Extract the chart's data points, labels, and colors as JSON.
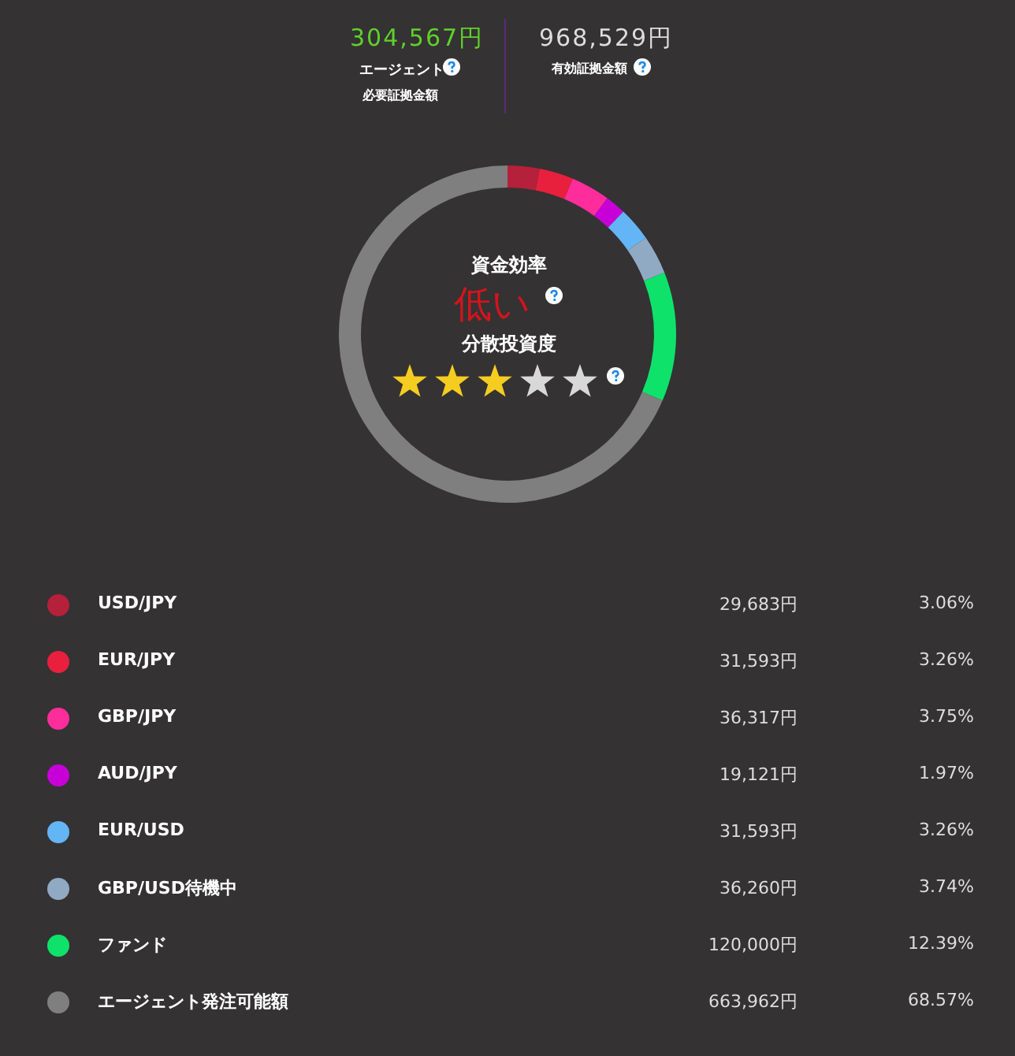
{
  "chart_data": {
    "type": "donut",
    "categories": [
      "USD/JPY",
      "EUR/JPY",
      "GBP/JPY",
      "AUD/JPY",
      "EUR/USD",
      "GBP/USD待機中",
      "ファンド",
      "エージェント発注可能額"
    ],
    "values": [
      29683,
      31593,
      36317,
      19121,
      31593,
      36260,
      120000,
      663962
    ],
    "value_labels": [
      "29,683円",
      "31,593円",
      "36,317円",
      "19,121円",
      "31,593円",
      "36,260円",
      "120,000円",
      "663,962円"
    ],
    "colors": [
      "#b5203a",
      "#e8203e",
      "#ff2d9b",
      "#c800d8",
      "#64b5f6",
      "#90aac4",
      "#0fe26b",
      "#7f7f7f"
    ],
    "legend": "bottom",
    "annotations": [
      "304,567円",
      "エージェント",
      "必要証拠金額",
      "968,529円",
      "有効証拠金額",
      "資金効率",
      "低い",
      "分散投資度",
      "3.06%",
      "3.26%",
      "3.75%",
      "1.97%",
      "3.26%",
      "3.74%",
      "12.39%",
      "68.57%"
    ]
  }
}
